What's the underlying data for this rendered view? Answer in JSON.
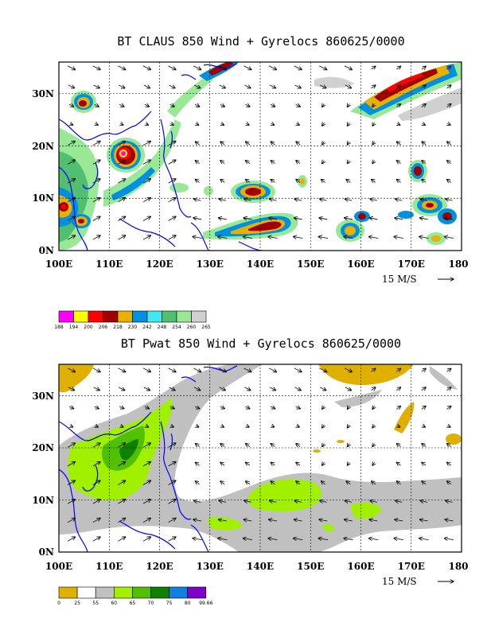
{
  "chart_data": [
    {
      "type": "map",
      "title": "BT CLAUS 850 Wind + Gyrelocs 860625/0000",
      "x_ticks": [
        "100E",
        "110E",
        "120E",
        "130E",
        "140E",
        "150E",
        "160E",
        "170E",
        "180"
      ],
      "y_ticks": [
        "0N",
        "10N",
        "20N",
        "30N"
      ],
      "xlim": [
        100,
        180
      ],
      "ylim": [
        0,
        36
      ],
      "grid": true,
      "reference_vector": "15 M/S",
      "colorbar": {
        "labels": [
          "188",
          "194",
          "200",
          "206",
          "218",
          "230",
          "242",
          "248",
          "254",
          "260",
          "265"
        ],
        "colors": [
          "#ff00ff",
          "#ffff00",
          "#ff0000",
          "#a00000",
          "#e8b000",
          "#0090e0",
          "#40e8f0",
          "#50c070",
          "#98e898",
          "#d0d0d0"
        ]
      }
    },
    {
      "type": "map",
      "title": "BT Pwat 850 Wind + Gyrelocs 860625/0000",
      "x_ticks": [
        "100E",
        "110E",
        "120E",
        "130E",
        "140E",
        "150E",
        "160E",
        "170E",
        "180"
      ],
      "y_ticks": [
        "0N",
        "10N",
        "20N",
        "30N"
      ],
      "xlim": [
        100,
        180
      ],
      "ylim": [
        0,
        36
      ],
      "grid": true,
      "reference_vector": "15 M/S",
      "colorbar": {
        "labels": [
          "0",
          "25",
          "55",
          "60",
          "65",
          "70",
          "75",
          "80",
          "99.66"
        ],
        "colors": [
          "#e0b000",
          "#ffffff",
          "#c0c0c0",
          "#a0f000",
          "#50c000",
          "#108000",
          "#1080e0",
          "#8000c8"
        ]
      }
    }
  ]
}
